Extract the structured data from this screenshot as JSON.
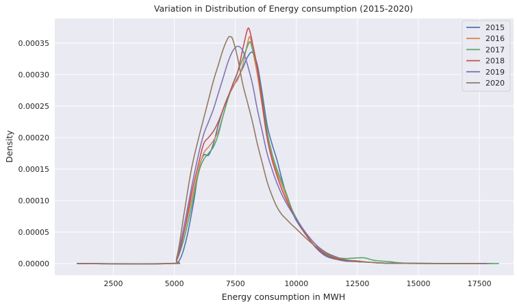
{
  "chart_data": {
    "type": "line",
    "title": "Variation in Distribution of Energy consumption (2015-2020)",
    "xlabel": "Energy consumption in MWH",
    "ylabel": "Density",
    "xlim": [
      100,
      18900
    ],
    "ylim": [
      -1.85e-05,
      0.000389
    ],
    "xticks": [
      2500,
      5000,
      7500,
      10000,
      12500,
      15000,
      17500
    ],
    "xtick_labels": [
      "2500",
      "5000",
      "7500",
      "10000",
      "12500",
      "15000",
      "17500"
    ],
    "yticks": [
      0,
      5e-05,
      0.0001,
      0.00015,
      0.0002,
      0.00025,
      0.0003,
      0.00035
    ],
    "ytick_labels": [
      "0.00000",
      "0.00005",
      "0.00010",
      "0.00015",
      "0.00020",
      "0.00025",
      "0.00030",
      "0.00035"
    ],
    "grid": true,
    "legend_position": "top-right",
    "series": [
      {
        "name": "2015",
        "color": "#4c72b0",
        "points": [
          [
            1000,
            0
          ],
          [
            4800,
            0
          ],
          [
            5200,
            5e-06
          ],
          [
            5500,
            4e-05
          ],
          [
            5800,
            0.0001
          ],
          [
            6000,
            0.00015
          ],
          [
            6200,
            0.000172
          ],
          [
            6400,
            0.000172
          ],
          [
            6600,
            0.00019
          ],
          [
            6800,
            0.00022
          ],
          [
            7000,
            0.000245
          ],
          [
            7200,
            0.000265
          ],
          [
            7400,
            0.00028
          ],
          [
            7600,
            0.000295
          ],
          [
            7800,
            0.00031
          ],
          [
            8000,
            0.000328
          ],
          [
            8200,
            0.000335
          ],
          [
            8400,
            0.000315
          ],
          [
            8600,
            0.00027
          ],
          [
            8800,
            0.00022
          ],
          [
            9000,
            0.00019
          ],
          [
            9200,
            0.000165
          ],
          [
            9400,
            0.000135
          ],
          [
            9600,
            0.000108
          ],
          [
            9800,
            8.5e-05
          ],
          [
            10000,
            6.8e-05
          ],
          [
            10400,
            4.5e-05
          ],
          [
            10800,
            2.5e-05
          ],
          [
            11200,
            1.2e-05
          ],
          [
            11600,
            7e-06
          ],
          [
            12000,
            4e-06
          ],
          [
            12500,
            3e-06
          ],
          [
            13000,
            2e-06
          ],
          [
            14000,
            5e-07
          ],
          [
            18000,
            0
          ]
        ]
      },
      {
        "name": "2016",
        "color": "#dd8452",
        "points": [
          [
            1000,
            0
          ],
          [
            4800,
            0
          ],
          [
            5100,
            8e-06
          ],
          [
            5400,
            5e-05
          ],
          [
            5700,
            0.0001
          ],
          [
            6000,
            0.00015
          ],
          [
            6200,
            0.000175
          ],
          [
            6400,
            0.000185
          ],
          [
            6600,
            0.000195
          ],
          [
            6800,
            0.00021
          ],
          [
            7000,
            0.000235
          ],
          [
            7200,
            0.000262
          ],
          [
            7400,
            0.000282
          ],
          [
            7600,
            0.000292
          ],
          [
            7800,
            0.000315
          ],
          [
            8000,
            0.00035
          ],
          [
            8100,
            0.00036
          ],
          [
            8200,
            0.00034
          ],
          [
            8400,
            0.0003
          ],
          [
            8600,
            0.00025
          ],
          [
            8800,
            0.0002
          ],
          [
            9000,
            0.00017
          ],
          [
            9200,
            0.000145
          ],
          [
            9400,
            0.000125
          ],
          [
            9600,
            0.000105
          ],
          [
            9800,
            8.5e-05
          ],
          [
            10000,
            7e-05
          ],
          [
            10400,
            4.6e-05
          ],
          [
            10800,
            2.6e-05
          ],
          [
            11200,
            1.5e-05
          ],
          [
            11600,
            9e-06
          ],
          [
            12000,
            6e-06
          ],
          [
            12500,
            4e-06
          ],
          [
            13000,
            2e-06
          ],
          [
            14000,
            5e-07
          ],
          [
            17800,
            0
          ]
        ]
      },
      {
        "name": "2017",
        "color": "#55a868",
        "points": [
          [
            1000,
            0
          ],
          [
            4800,
            0
          ],
          [
            5100,
            6e-06
          ],
          [
            5400,
            4e-05
          ],
          [
            5700,
            9e-05
          ],
          [
            6000,
            0.000145
          ],
          [
            6200,
            0.000165
          ],
          [
            6400,
            0.000175
          ],
          [
            6600,
            0.000185
          ],
          [
            6800,
            0.000205
          ],
          [
            7000,
            0.000235
          ],
          [
            7200,
            0.000262
          ],
          [
            7400,
            0.000285
          ],
          [
            7600,
            0.000305
          ],
          [
            7800,
            0.000325
          ],
          [
            8000,
            0.000345
          ],
          [
            8100,
            0.000352
          ],
          [
            8200,
            0.00034
          ],
          [
            8400,
            0.00031
          ],
          [
            8600,
            0.00026
          ],
          [
            8800,
            0.00021
          ],
          [
            9000,
            0.000175
          ],
          [
            9200,
            0.00015
          ],
          [
            9400,
            0.00013
          ],
          [
            9600,
            0.00011
          ],
          [
            9800,
            8.8e-05
          ],
          [
            10000,
            7.2e-05
          ],
          [
            10400,
            4.8e-05
          ],
          [
            10800,
            3e-05
          ],
          [
            11200,
            1.6e-05
          ],
          [
            11600,
            1e-05
          ],
          [
            12000,
            8e-06
          ],
          [
            12500,
            9e-06
          ],
          [
            12800,
            9e-06
          ],
          [
            13200,
            5e-06
          ],
          [
            13800,
            3e-06
          ],
          [
            14300,
            1e-06
          ],
          [
            15000,
            0
          ],
          [
            18300,
            0
          ]
        ]
      },
      {
        "name": "2018",
        "color": "#c44e52",
        "points": [
          [
            1000,
            0
          ],
          [
            4800,
            0
          ],
          [
            5100,
            6e-06
          ],
          [
            5400,
            5e-05
          ],
          [
            5700,
            0.00011
          ],
          [
            6000,
            0.00016
          ],
          [
            6200,
            0.00019
          ],
          [
            6400,
            0.0002
          ],
          [
            6600,
            0.00021
          ],
          [
            6800,
            0.000225
          ],
          [
            7000,
            0.000245
          ],
          [
            7200,
            0.000265
          ],
          [
            7400,
            0.000285
          ],
          [
            7600,
            0.000305
          ],
          [
            7800,
            0.00034
          ],
          [
            8000,
            0.000372
          ],
          [
            8100,
            0.000368
          ],
          [
            8200,
            0.00035
          ],
          [
            8400,
            0.00031
          ],
          [
            8600,
            0.000255
          ],
          [
            8800,
            0.0002
          ],
          [
            9000,
            0.000165
          ],
          [
            9200,
            0.00014
          ],
          [
            9400,
            0.000118
          ],
          [
            9600,
            0.0001
          ],
          [
            9800,
            8.4e-05
          ],
          [
            10000,
            7e-05
          ],
          [
            10400,
            4.5e-05
          ],
          [
            10800,
            2.6e-05
          ],
          [
            11200,
            1.4e-05
          ],
          [
            11600,
            8e-06
          ],
          [
            12000,
            5e-06
          ],
          [
            12500,
            4e-06
          ],
          [
            13000,
            2e-06
          ],
          [
            14000,
            5e-07
          ],
          [
            17800,
            0
          ]
        ]
      },
      {
        "name": "2019",
        "color": "#8172b3",
        "points": [
          [
            1000,
            0
          ],
          [
            4800,
            0
          ],
          [
            5100,
            8e-06
          ],
          [
            5400,
            6e-05
          ],
          [
            5700,
            0.00012
          ],
          [
            6000,
            0.000175
          ],
          [
            6200,
            0.000205
          ],
          [
            6400,
            0.000225
          ],
          [
            6600,
            0.000245
          ],
          [
            6800,
            0.00027
          ],
          [
            7000,
            0.000295
          ],
          [
            7200,
            0.00032
          ],
          [
            7400,
            0.000338
          ],
          [
            7600,
            0.000345
          ],
          [
            7800,
            0.000338
          ],
          [
            8000,
            0.000315
          ],
          [
            8200,
            0.000285
          ],
          [
            8400,
            0.000245
          ],
          [
            8600,
            0.00021
          ],
          [
            8800,
            0.000175
          ],
          [
            9000,
            0.00015
          ],
          [
            9200,
            0.000128
          ],
          [
            9400,
            0.00011
          ],
          [
            9600,
            9.5e-05
          ],
          [
            9800,
            8.2e-05
          ],
          [
            10000,
            7e-05
          ],
          [
            10400,
            4.8e-05
          ],
          [
            10800,
            3e-05
          ],
          [
            11200,
            1.8e-05
          ],
          [
            11600,
            1.1e-05
          ],
          [
            12000,
            6e-06
          ],
          [
            12500,
            3e-06
          ],
          [
            13000,
            2e-06
          ],
          [
            14000,
            5e-07
          ],
          [
            17800,
            0
          ]
        ]
      },
      {
        "name": "2020",
        "color": "#937860",
        "points": [
          [
            1000,
            0
          ],
          [
            4800,
            0
          ],
          [
            5100,
            1e-05
          ],
          [
            5400,
            8e-05
          ],
          [
            5700,
            0.00015
          ],
          [
            6000,
            0.0002
          ],
          [
            6200,
            0.00023
          ],
          [
            6400,
            0.00026
          ],
          [
            6600,
            0.00029
          ],
          [
            6800,
            0.000315
          ],
          [
            7000,
            0.00034
          ],
          [
            7200,
            0.000358
          ],
          [
            7300,
            0.00036
          ],
          [
            7400,
            0.000355
          ],
          [
            7600,
            0.000325
          ],
          [
            7800,
            0.000285
          ],
          [
            8000,
            0.000255
          ],
          [
            8200,
            0.000225
          ],
          [
            8400,
            0.00019
          ],
          [
            8600,
            0.00016
          ],
          [
            8800,
            0.00013
          ],
          [
            9000,
            0.000108
          ],
          [
            9200,
            9e-05
          ],
          [
            9400,
            7.8e-05
          ],
          [
            9600,
            7e-05
          ],
          [
            9800,
            6.2e-05
          ],
          [
            10000,
            5.5e-05
          ],
          [
            10400,
            4e-05
          ],
          [
            10800,
            2.7e-05
          ],
          [
            11200,
            1.7e-05
          ],
          [
            11600,
            1e-05
          ],
          [
            12000,
            6e-06
          ],
          [
            12500,
            3e-06
          ],
          [
            13000,
            2e-06
          ],
          [
            14000,
            5e-07
          ],
          [
            17600,
            0
          ]
        ]
      }
    ]
  }
}
